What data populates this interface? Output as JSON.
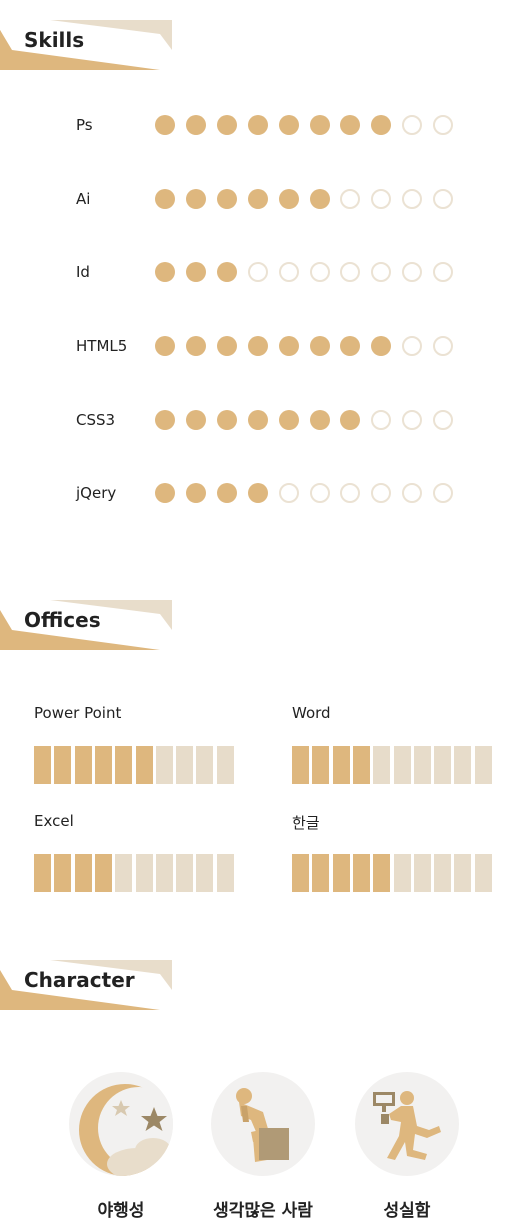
{
  "colors": {
    "accent": "#deb77e",
    "light": "#ebe2d3",
    "bar_off": "#e7dcca",
    "header_back": "#e8ddcb"
  },
  "sections": {
    "skills_title": "Skills",
    "offices_title": "Offices",
    "character_title": "Character"
  },
  "skills": [
    {
      "label": "Ps",
      "level": 8,
      "max": 10
    },
    {
      "label": "Ai",
      "level": 6,
      "max": 10
    },
    {
      "label": "Id",
      "level": 3,
      "max": 10
    },
    {
      "label": "HTML5",
      "level": 8,
      "max": 10
    },
    {
      "label": "CSS3",
      "level": 7,
      "max": 10
    },
    {
      "label": "jQery",
      "level": 4,
      "max": 10
    }
  ],
  "offices": [
    {
      "label": "Power Point",
      "level": 6,
      "max": 10
    },
    {
      "label": "Word",
      "level": 4,
      "max": 10
    },
    {
      "label": "Excel",
      "level": 4,
      "max": 10
    },
    {
      "label": "한글",
      "level": 5,
      "max": 10
    }
  ],
  "characters": [
    {
      "label": "야행성",
      "icon": "moon-stars-icon"
    },
    {
      "label": "생각많은 사람",
      "icon": "thinker-icon"
    },
    {
      "label": "성실함",
      "icon": "running-worker-icon"
    }
  ]
}
